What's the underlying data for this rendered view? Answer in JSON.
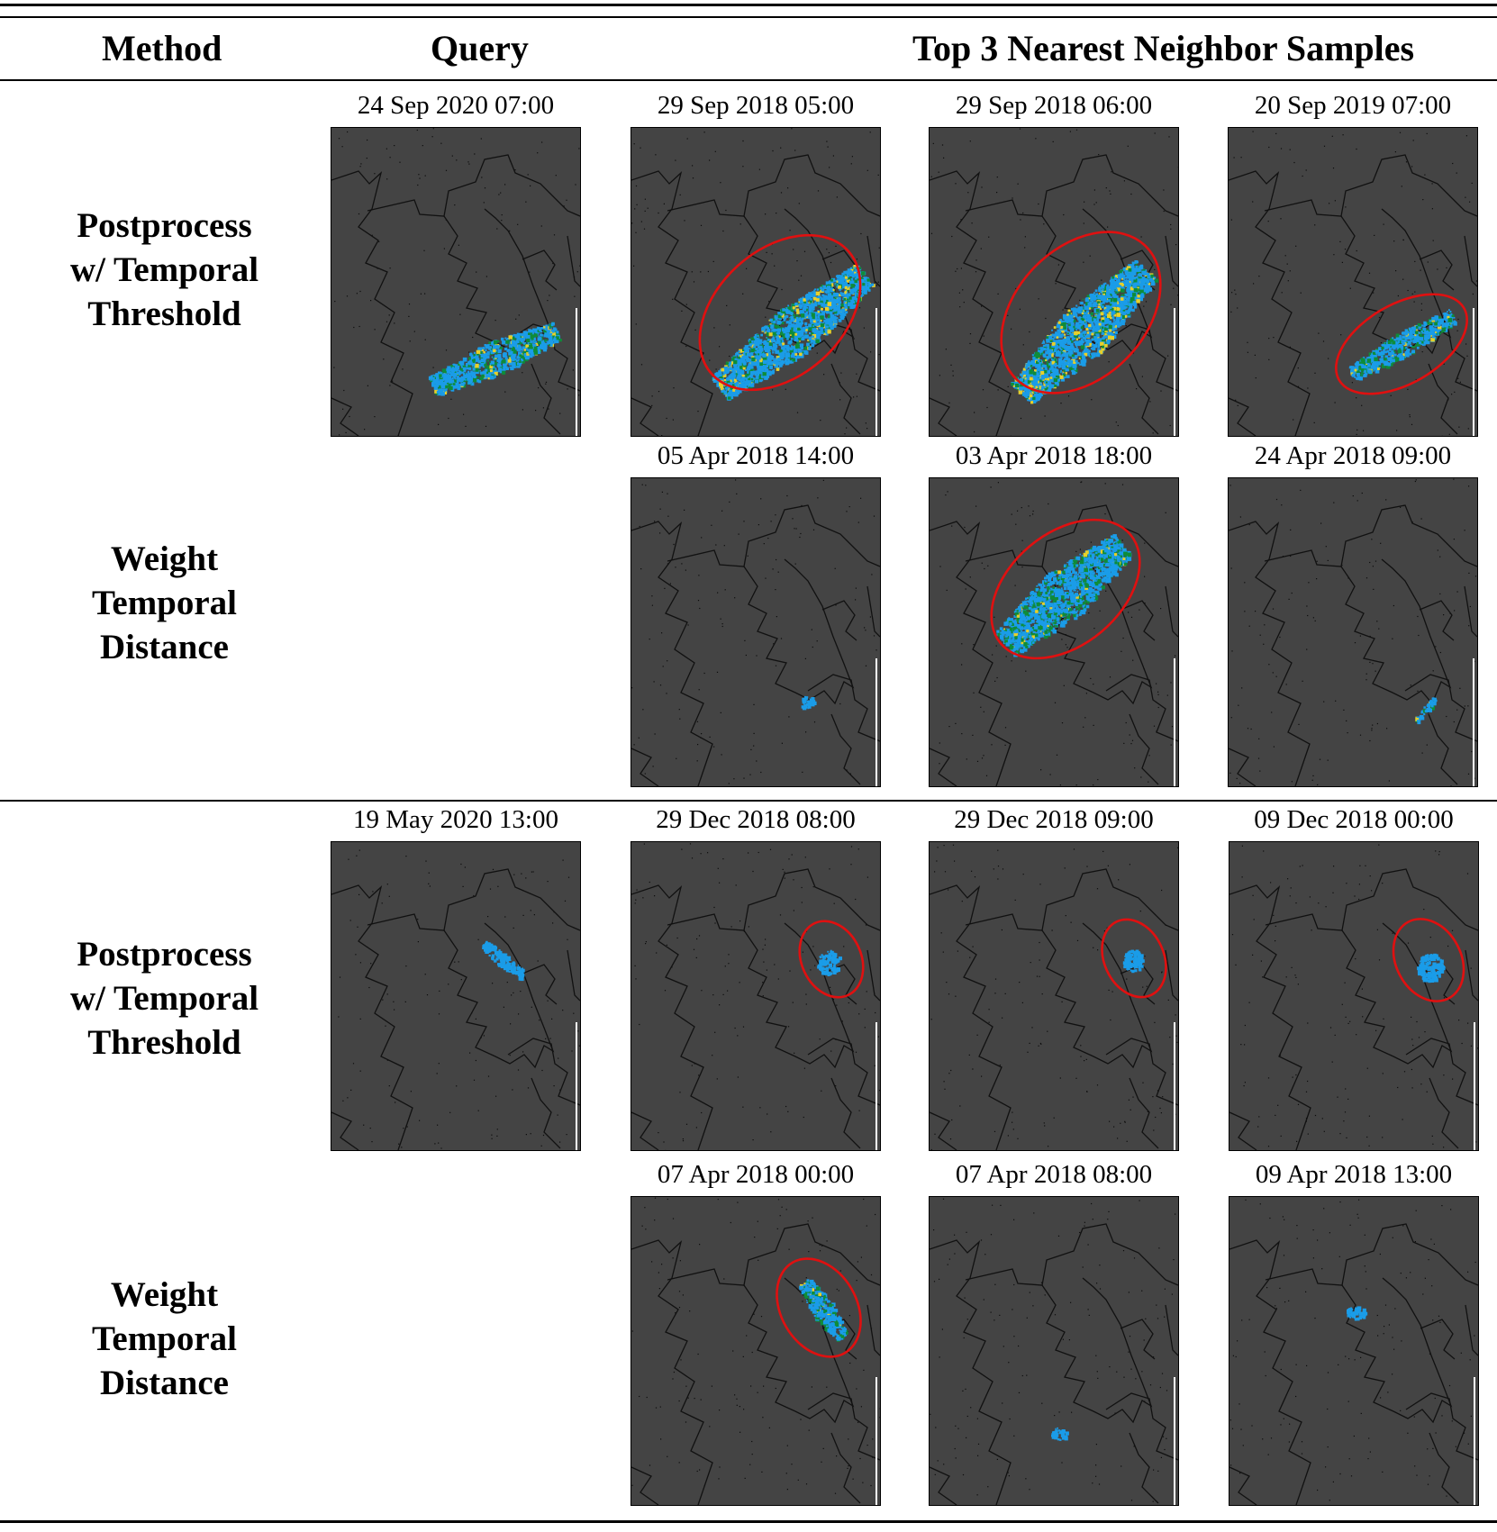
{
  "header": {
    "method": "Method",
    "query": "Query",
    "neighbors": "Top 3 Nearest Neighbor Samples"
  },
  "colors": {
    "map_background": "#444444",
    "coastline": "#111111",
    "precip_light": "#1a9ce8",
    "precip_mid": "#0e8c3a",
    "precip_heavy": "#e8d02a",
    "highlight_ellipse": "#e01010"
  },
  "groups": [
    {
      "query_time": "24 Sep 2020 07:00",
      "rows": [
        {
          "method_lines": [
            "Postprocess",
            "w/ Temporal",
            "Threshold"
          ],
          "neighbors": [
            "29 Sep 2018 05:00",
            "29 Sep 2018 06:00",
            "20 Sep 2019 07:00"
          ]
        },
        {
          "method_lines": [
            "Weight",
            "Temporal",
            "Distance"
          ],
          "neighbors": [
            "05 Apr 2018 14:00",
            "03 Apr 2018 18:00",
            "24 Apr 2018 09:00"
          ]
        }
      ]
    },
    {
      "query_time": "19 May 2020 13:00",
      "rows": [
        {
          "method_lines": [
            "Postprocess",
            "w/ Temporal",
            "Threshold"
          ],
          "neighbors": [
            "29 Dec 2018 08:00",
            "29 Dec 2018 09:00",
            "09 Dec 2018 00:00"
          ]
        },
        {
          "method_lines": [
            "Weight",
            "Temporal",
            "Distance"
          ],
          "neighbors": [
            "07 Apr 2018 00:00",
            "07 Apr 2018 08:00",
            "09 Apr 2018 13:00"
          ]
        }
      ]
    }
  ]
}
